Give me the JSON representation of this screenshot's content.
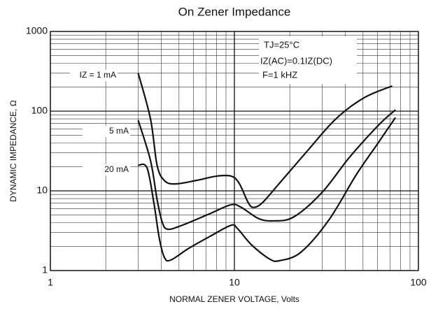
{
  "chart_data": {
    "type": "line",
    "title": "On Zener Impedance",
    "x_label": "NORMAL ZENER VOLTAGE, Volts",
    "y_label": "DYNAMIC IMPEDANCE, Ω",
    "log_x": true,
    "log_y": true,
    "grid": true,
    "xlim": [
      1,
      100
    ],
    "xticks": [
      1,
      10,
      100
    ],
    "ylim": [
      1,
      1000
    ],
    "yticks": [
      1,
      10,
      100,
      1000
    ],
    "annotations": [
      "TJ=25°C",
      "IZ(AC)=0.1IZ(DC)",
      "F=1 kHZ"
    ],
    "series": [
      {
        "name": "IZ = 1 mA",
        "color": "#111111",
        "x": [
          3.0,
          3.5,
          3.8,
          4.16,
          4.75,
          6.2,
          8.0,
          9.6,
          10.6,
          11.9,
          12.7,
          14.2,
          17.6,
          25,
          35.6,
          50.6,
          72
        ],
        "values": [
          300,
          80,
          21,
          13.5,
          12.2,
          13.5,
          15.3,
          15.3,
          12.5,
          7.1,
          6.2,
          7.1,
          12.5,
          32,
          80,
          147,
          207
        ]
      },
      {
        "name": "5 mA",
        "color": "#111111",
        "x": [
          3.0,
          3.5,
          3.8,
          4.06,
          4.35,
          5.2,
          7.4,
          9.6,
          10.9,
          13.5,
          16.2,
          21,
          30,
          42,
          60,
          75
        ],
        "values": [
          77,
          24,
          7.8,
          4.0,
          3.3,
          3.7,
          5.2,
          6.7,
          6.2,
          4.5,
          4.2,
          4.7,
          9.6,
          26,
          65,
          104
        ]
      },
      {
        "name": "20 mA",
        "color": "#111111",
        "x": [
          3.0,
          3.35,
          3.65,
          3.9,
          4.16,
          4.5,
          5.65,
          7.4,
          9.6,
          10.4,
          12.4,
          15.5,
          17.6,
          23,
          32.6,
          46,
          60,
          75
        ],
        "values": [
          21,
          19.5,
          7.1,
          2.6,
          1.47,
          1.35,
          1.9,
          2.7,
          3.7,
          3.36,
          2.1,
          1.4,
          1.33,
          1.7,
          4.3,
          16,
          39,
          83
        ]
      }
    ]
  }
}
